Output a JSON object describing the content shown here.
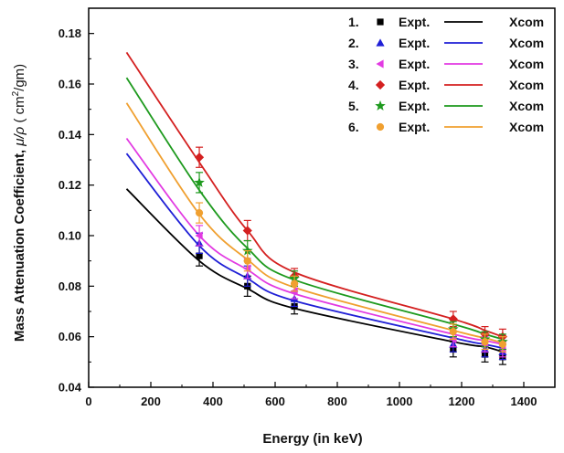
{
  "chart_data": {
    "type": "scatter",
    "title": "",
    "xlabel": "Energy (in keV)",
    "ylabel": "Mass Attenuation Coefficient, μ/ρ ( cm²/gm)",
    "ylabel_main": "Mass Attenuation Coefficient, ",
    "ylabel_mu_rho": "μ/ρ",
    "ylabel_unit_open": " ( cm",
    "ylabel_unit_sup": "2",
    "ylabel_unit_close": "/gm)",
    "xlim": [
      0,
      1500
    ],
    "ylim": [
      0.04,
      0.19
    ],
    "xticks": [
      "0",
      "200",
      "400",
      "600",
      "800",
      "1000",
      "1200",
      "1400"
    ],
    "xtick_values": [
      0,
      200,
      400,
      600,
      800,
      1000,
      1200,
      1400
    ],
    "yticks": [
      "0.04",
      "0.06",
      "0.08",
      "0.10",
      "0.12",
      "0.14",
      "0.16",
      "0.18"
    ],
    "ytick_values": [
      0.04,
      0.06,
      0.08,
      0.1,
      0.12,
      0.14,
      0.16,
      0.18
    ],
    "grid": false,
    "legend_position": "top-right",
    "expt_energies": [
      356,
      511,
      662,
      1173,
      1275,
      1332
    ],
    "xcom_energies": [
      122,
      356,
      511,
      662,
      1173,
      1275,
      1332
    ],
    "series": [
      {
        "legend_num": "1.",
        "expt_label": "Expt.",
        "xcom_label": "Xcom",
        "color": "#000000",
        "marker": "square",
        "expt": [
          0.092,
          0.08,
          0.072,
          0.055,
          0.053,
          0.052
        ],
        "expt_err": [
          0.004,
          0.004,
          0.003,
          0.003,
          0.003,
          0.003
        ],
        "xcom": [
          0.1185,
          0.09,
          0.079,
          0.0712,
          0.058,
          0.056,
          0.054
        ]
      },
      {
        "legend_num": "2.",
        "expt_label": "Expt.",
        "xcom_label": "Xcom",
        "color": "#1f1fd6",
        "marker": "triangle-up",
        "expt": [
          0.097,
          0.084,
          0.075,
          0.057,
          0.055,
          0.054
        ],
        "expt_err": [
          0.004,
          0.004,
          0.003,
          0.003,
          0.003,
          0.003
        ],
        "xcom": [
          0.1325,
          0.096,
          0.083,
          0.0742,
          0.0595,
          0.057,
          0.0555
        ]
      },
      {
        "legend_num": "3.",
        "expt_label": "Expt.",
        "xcom_label": "Xcom",
        "color": "#e23ae2",
        "marker": "triangle-left",
        "expt": [
          0.1,
          0.087,
          0.078,
          0.059,
          0.057,
          0.055
        ],
        "expt_err": [
          0.004,
          0.004,
          0.003,
          0.003,
          0.003,
          0.003
        ],
        "xcom": [
          0.1385,
          0.1,
          0.0865,
          0.077,
          0.061,
          0.0585,
          0.057
        ]
      },
      {
        "legend_num": "4.",
        "expt_label": "Expt.",
        "xcom_label": "Xcom",
        "color": "#d42020",
        "marker": "diamond",
        "expt": [
          0.131,
          0.102,
          0.084,
          0.067,
          0.061,
          0.06
        ],
        "expt_err": [
          0.004,
          0.004,
          0.003,
          0.003,
          0.003,
          0.003
        ],
        "xcom": [
          0.1725,
          0.129,
          0.102,
          0.0855,
          0.067,
          0.0625,
          0.06
        ]
      },
      {
        "legend_num": "5.",
        "expt_label": "Expt.",
        "xcom_label": "Xcom",
        "color": "#1e9a1e",
        "marker": "star",
        "expt": [
          0.121,
          0.094,
          0.083,
          0.063,
          0.059,
          0.058
        ],
        "expt_err": [
          0.004,
          0.004,
          0.003,
          0.003,
          0.003,
          0.003
        ],
        "xcom": [
          0.1625,
          0.118,
          0.095,
          0.0825,
          0.065,
          0.061,
          0.059
        ]
      },
      {
        "legend_num": "6.",
        "expt_label": "Expt.",
        "xcom_label": "Xcom",
        "color": "#f0a030",
        "marker": "circle",
        "expt": [
          0.109,
          0.09,
          0.081,
          0.062,
          0.058,
          0.057
        ],
        "expt_err": [
          0.004,
          0.004,
          0.003,
          0.003,
          0.003,
          0.003
        ],
        "xcom": [
          0.1525,
          0.1085,
          0.0905,
          0.0795,
          0.0625,
          0.0595,
          0.0575
        ]
      }
    ]
  }
}
